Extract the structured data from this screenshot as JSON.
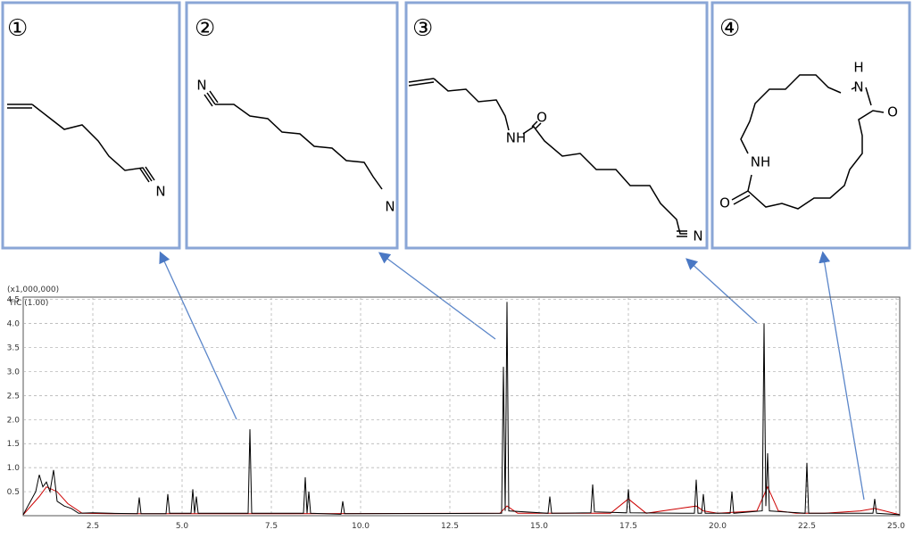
{
  "panels": [
    {
      "number": "①",
      "labels": [
        "N"
      ]
    },
    {
      "number": "②",
      "labels": [
        "N",
        "N"
      ]
    },
    {
      "number": "③",
      "labels": [
        "NH",
        "O",
        "N"
      ]
    },
    {
      "number": "④",
      "labels": [
        "H",
        "N",
        "O",
        "NH",
        "O"
      ]
    }
  ],
  "chart_data": {
    "type": "line",
    "scale_label": "(x1,000,000)",
    "xlim": [
      0.55,
      25.1
    ],
    "ylim": [
      0,
      4.55
    ],
    "grid": true,
    "xticks": [
      {
        "value": 2.5,
        "label": "2.5"
      },
      {
        "value": 5,
        "label": "5.0"
      },
      {
        "value": 7.5,
        "label": "7.5"
      },
      {
        "value": 10,
        "label": "10.0"
      },
      {
        "value": 12.5,
        "label": "12.5"
      },
      {
        "value": 15,
        "label": "15.0"
      },
      {
        "value": 17.5,
        "label": "17.5"
      },
      {
        "value": 20,
        "label": "20.0"
      },
      {
        "value": 22.5,
        "label": "22.5"
      },
      {
        "value": 25,
        "label": "25.0"
      }
    ],
    "yticks": [
      0.5,
      {
        "value": 1,
        "label": "1.0"
      },
      1.5,
      {
        "value": 2,
        "label": "2.0"
      },
      2.5,
      {
        "value": 3,
        "label": "3.0"
      },
      3.5,
      {
        "value": 4,
        "label": "4.0"
      },
      4.5
    ],
    "series": [
      {
        "name": "TIC (1.00)",
        "color": "#000000",
        "x": [
          0.55,
          0.9,
          1.0,
          1.1,
          1.2,
          1.3,
          1.4,
          1.5,
          1.7,
          1.9,
          2.1,
          2.5,
          3.0,
          3.75,
          3.8,
          3.85,
          4.55,
          4.6,
          4.65,
          5.25,
          5.3,
          5.35,
          5.4,
          5.45,
          6.85,
          6.9,
          6.95,
          8.4,
          8.45,
          8.5,
          8.55,
          8.6,
          9.45,
          9.5,
          9.55,
          13.95,
          14.0,
          14.05,
          14.1,
          14.15,
          15.25,
          15.3,
          15.35,
          16.45,
          16.5,
          16.55,
          17.45,
          17.5,
          17.55,
          19.35,
          19.4,
          19.45,
          19.55,
          19.6,
          19.65,
          20.35,
          20.4,
          20.45,
          21.25,
          21.3,
          21.35,
          21.4,
          21.45,
          22.45,
          22.5,
          22.55,
          24.35,
          24.4,
          24.45,
          25.1
        ],
        "values": [
          0.02,
          0.5,
          0.85,
          0.6,
          0.7,
          0.5,
          0.95,
          0.3,
          0.2,
          0.15,
          0.05,
          0.06,
          0.05,
          0.04,
          0.38,
          0.04,
          0.04,
          0.45,
          0.05,
          0.05,
          0.55,
          0.05,
          0.4,
          0.05,
          0.05,
          1.8,
          0.05,
          0.05,
          0.8,
          0.05,
          0.5,
          0.05,
          0.03,
          0.3,
          0.04,
          0.05,
          3.1,
          0.1,
          4.45,
          0.1,
          0.05,
          0.4,
          0.05,
          0.06,
          0.65,
          0.08,
          0.06,
          0.55,
          0.06,
          0.05,
          0.75,
          0.05,
          0.05,
          0.45,
          0.05,
          0.05,
          0.5,
          0.05,
          0.1,
          4.0,
          0.2,
          1.3,
          0.1,
          0.05,
          1.1,
          0.05,
          0.05,
          0.35,
          0.05,
          0.02
        ]
      },
      {
        "color": "#cc0000",
        "x": [
          0.55,
          1.0,
          1.2,
          1.5,
          1.8,
          2.2,
          3.0,
          8.0,
          13.9,
          14.1,
          14.4,
          15.0,
          17.0,
          17.5,
          18.0,
          19.4,
          19.6,
          20.0,
          21.1,
          21.4,
          21.7,
          22.2,
          23.0,
          24.0,
          24.4,
          25.1
        ],
        "values": [
          0.02,
          0.4,
          0.6,
          0.5,
          0.25,
          0.05,
          0.04,
          0.04,
          0.05,
          0.2,
          0.05,
          0.05,
          0.05,
          0.35,
          0.05,
          0.2,
          0.1,
          0.05,
          0.1,
          0.6,
          0.1,
          0.05,
          0.05,
          0.1,
          0.15,
          0.02
        ]
      }
    ]
  }
}
